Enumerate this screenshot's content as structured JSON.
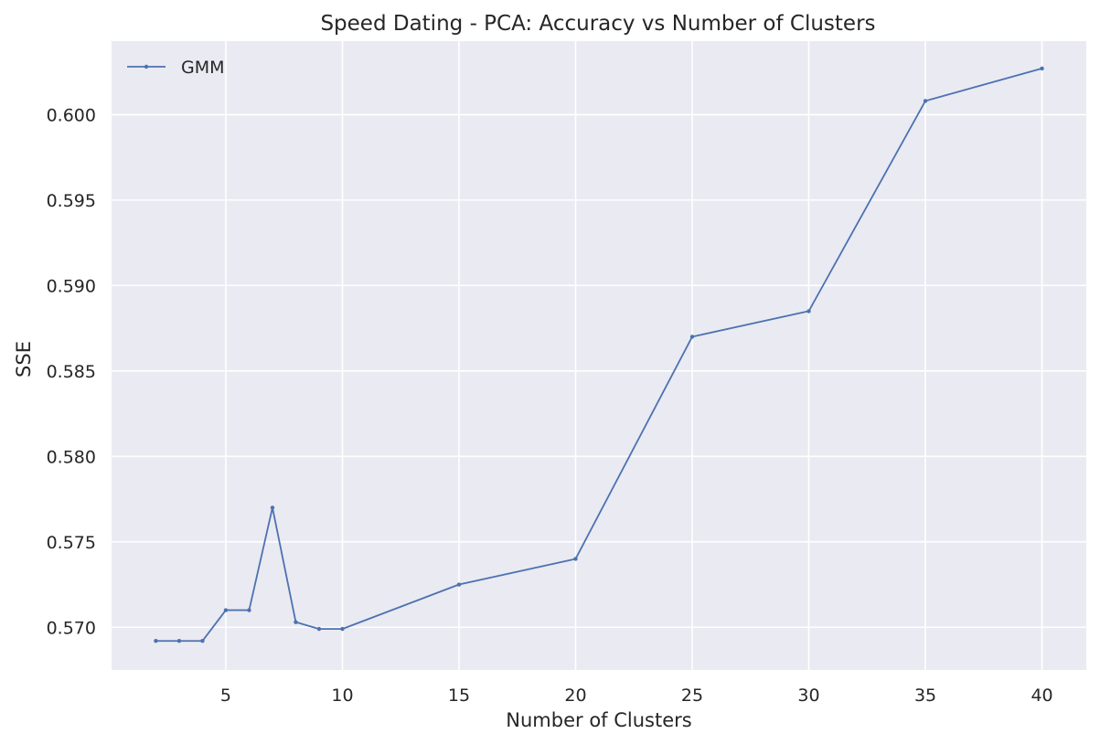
{
  "chart_data": {
    "type": "line",
    "title": "Speed Dating - PCA: Accuracy vs Number of Clusters",
    "xlabel": "Number of Clusters",
    "ylabel": "SSE",
    "xlim": [
      0.1,
      41.9
    ],
    "ylim": [
      0.5675,
      0.6043
    ],
    "xticks": [
      5,
      10,
      15,
      20,
      25,
      30,
      35,
      40
    ],
    "yticks": [
      0.57,
      0.575,
      0.58,
      0.585,
      0.59,
      0.595,
      0.6
    ],
    "ytick_labels": [
      "0.570",
      "0.575",
      "0.580",
      "0.585",
      "0.590",
      "0.595",
      "0.600"
    ],
    "grid": true,
    "legend_position": "top-left",
    "series": [
      {
        "name": "GMM",
        "color": "#4c72b0",
        "marker": "point",
        "x": [
          2,
          3,
          4,
          5,
          6,
          7,
          8,
          9,
          10,
          15,
          20,
          25,
          30,
          35,
          40
        ],
        "y": [
          0.5692,
          0.5692,
          0.5692,
          0.571,
          0.571,
          0.577,
          0.5703,
          0.5699,
          0.5699,
          0.5725,
          0.574,
          0.587,
          0.5885,
          0.6008,
          0.6027
        ]
      }
    ]
  }
}
